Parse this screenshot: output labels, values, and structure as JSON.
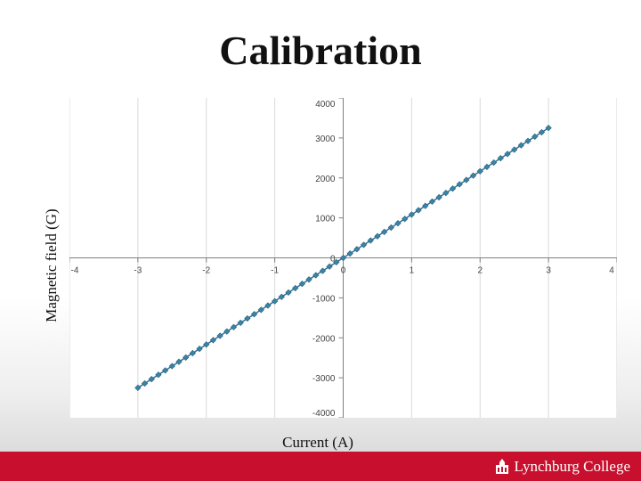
{
  "slide": {
    "title": "Calibration",
    "logo_text": "Lynchburg College",
    "logo_icon": "college-building-icon",
    "brand_color": "#c8102e"
  },
  "chart_data": {
    "type": "scatter",
    "xlabel": "Current (A)",
    "ylabel": "Magnetic field (G)",
    "xlim": [
      -4,
      4
    ],
    "ylim": [
      -4000,
      4000
    ],
    "x_ticks": [
      "-4",
      "-3",
      "-2",
      "-1",
      "0",
      "1",
      "2",
      "3",
      "4"
    ],
    "y_ticks": [
      "-4000",
      "-3000",
      "-2000",
      "-1000",
      "0",
      "1000",
      "2000",
      "3000",
      "4000"
    ],
    "grid": "vertical",
    "series": [
      {
        "color": "#3a84a8",
        "marker": "diamond",
        "x_start": -3.0,
        "x_end": 3.0,
        "x_step": 0.1,
        "slope_g_per_a": 1083.33,
        "y_at_x_start": -3250,
        "y_at_x_end": 3250
      }
    ]
  }
}
